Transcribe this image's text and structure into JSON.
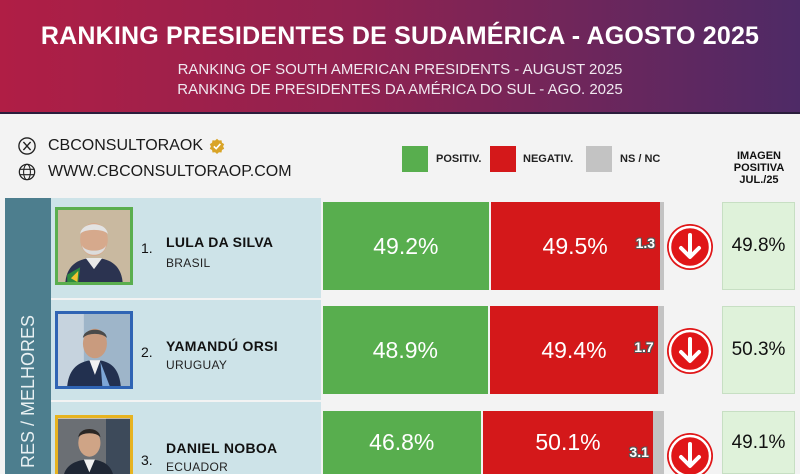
{
  "header": {
    "title": "RANKING PRESIDENTES DE SUDAMÉRICA - AGOSTO 2025",
    "subtitle_en": "RANKING OF SOUTH AMERICAN PRESIDENTS - AUGUST 2025",
    "subtitle_pt": "RANKING DE PRESIDENTES DA AMÉRICA DO SUL - AGO. 2025"
  },
  "social": {
    "x_handle": "CBCONSULTORAOK",
    "website": "WWW.CBCONSULTORAOP.COM",
    "x_icon": "x-logo-icon",
    "web_icon": "globe-icon",
    "verified_icon": "verified-badge-icon"
  },
  "legend": {
    "positive": "POSITIV.",
    "negative": "NEGATIV.",
    "ns": "NS / NC"
  },
  "image_column_header": [
    "IMAGEN",
    "POSITIVA",
    "JUL./25"
  ],
  "side_label": "RES / MELHORES",
  "colors": {
    "positive": "#58ae4e",
    "negative": "#d4181a",
    "ns": "#c3c3c3",
    "trend_down": "#e01618"
  },
  "chart_data": {
    "type": "bar",
    "stacked": true,
    "orientation": "horizontal",
    "title": "RANKING PRESIDENTES DE SUDAMÉRICA - AGOSTO 2025",
    "series_names": [
      "POSITIV.",
      "NEGATIV.",
      "NS / NC"
    ],
    "rows": [
      {
        "rank": "1.",
        "name": "LULA DA SILVA",
        "country": "BRASIL",
        "positive": 49.2,
        "positive_label": "49.2%",
        "negative": 49.5,
        "negative_label": "49.5%",
        "ns": 1.3,
        "ns_label": "1.3",
        "trend": "down",
        "previous_positive_label": "49.8%",
        "photo_border": "#5aae4e"
      },
      {
        "rank": "2.",
        "name": "YAMANDÚ ORSI",
        "country": "URUGUAY",
        "positive": 48.9,
        "positive_label": "48.9%",
        "negative": 49.4,
        "negative_label": "49.4%",
        "ns": 1.7,
        "ns_label": "1.7",
        "trend": "down",
        "previous_positive_label": "50.3%",
        "photo_border": "#2f64b4"
      },
      {
        "rank": "3.",
        "name": "DANIEL NOBOA",
        "country": "ECUADOR",
        "positive": 46.8,
        "positive_label": "46.8%",
        "negative": 50.1,
        "negative_label": "50.1%",
        "ns": 3.1,
        "ns_label": "3.1",
        "trend": "down",
        "previous_positive_label": "49.1%",
        "photo_border": "#e7b320"
      }
    ]
  }
}
